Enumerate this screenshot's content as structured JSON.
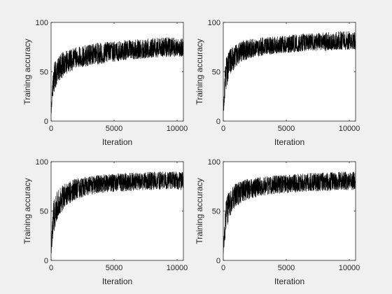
{
  "figure": {
    "background": "#f0f0f0",
    "axes_background": "#ffffff",
    "line_color": "#000000"
  },
  "chart_data": [
    {
      "type": "line",
      "position": "top-left",
      "xlabel": "Iteration",
      "ylabel": "Training accuracy",
      "xlim": [
        0,
        10500
      ],
      "ylim": [
        0,
        100
      ],
      "xticks": [
        0,
        5000,
        10000
      ],
      "yticks": [
        0,
        50,
        100
      ],
      "grid": false,
      "series": [
        {
          "color": "#000000",
          "x": [
            0,
            200,
            500,
            1000,
            1500,
            2000,
            3000,
            4000,
            5000,
            6000,
            7000,
            8000,
            9000,
            10000,
            10500
          ],
          "mean": [
            8,
            44,
            52,
            58,
            61,
            63,
            66,
            68,
            69,
            70,
            71,
            72,
            73,
            73,
            74
          ],
          "lower": [
            5,
            28,
            38,
            45,
            50,
            53,
            56,
            58,
            60,
            62,
            63,
            64,
            65,
            65,
            64
          ],
          "upper": [
            12,
            58,
            65,
            71,
            73,
            75,
            78,
            80,
            81,
            82,
            83,
            84,
            85,
            85,
            84
          ]
        }
      ]
    },
    {
      "type": "line",
      "position": "top-right",
      "xlabel": "Iteration",
      "ylabel": "Training accuracy",
      "xlim": [
        0,
        10500
      ],
      "ylim": [
        0,
        100
      ],
      "xticks": [
        0,
        5000,
        10000
      ],
      "yticks": [
        0,
        50,
        100
      ],
      "grid": false,
      "series": [
        {
          "color": "#000000",
          "x": [
            0,
            200,
            500,
            1000,
            1500,
            2000,
            3000,
            4000,
            5000,
            6000,
            7000,
            8000,
            9000,
            10000,
            10500
          ],
          "mean": [
            10,
            50,
            60,
            67,
            70,
            72,
            74,
            76,
            77,
            78,
            79,
            79,
            80,
            80,
            80
          ],
          "lower": [
            5,
            30,
            45,
            55,
            60,
            63,
            66,
            68,
            69,
            70,
            71,
            71,
            72,
            72,
            72
          ],
          "upper": [
            20,
            65,
            73,
            78,
            81,
            83,
            85,
            86,
            87,
            88,
            89,
            90,
            91,
            91,
            90
          ]
        }
      ]
    },
    {
      "type": "line",
      "position": "bottom-left",
      "xlabel": "Iteration",
      "ylabel": "Training accuracy",
      "xlim": [
        0,
        10500
      ],
      "ylim": [
        0,
        100
      ],
      "xticks": [
        0,
        5000,
        10000
      ],
      "yticks": [
        0,
        50,
        100
      ],
      "grid": false,
      "series": [
        {
          "color": "#000000",
          "x": [
            0,
            200,
            500,
            1000,
            1500,
            2000,
            3000,
            4000,
            5000,
            6000,
            7000,
            8000,
            9000,
            10000,
            10500
          ],
          "mean": [
            10,
            45,
            57,
            65,
            69,
            72,
            75,
            77,
            78,
            79,
            80,
            80,
            81,
            81,
            81
          ],
          "lower": [
            5,
            25,
            42,
            52,
            58,
            62,
            66,
            68,
            69,
            70,
            71,
            71,
            72,
            72,
            70
          ],
          "upper": [
            18,
            60,
            71,
            77,
            81,
            83,
            85,
            87,
            88,
            89,
            89,
            90,
            90,
            90,
            90
          ]
        }
      ]
    },
    {
      "type": "line",
      "position": "bottom-right",
      "xlabel": "Iteration",
      "ylabel": "Training accuracy",
      "xlim": [
        0,
        10500
      ],
      "ylim": [
        0,
        100
      ],
      "xticks": [
        0,
        5000,
        10000
      ],
      "yticks": [
        0,
        50,
        100
      ],
      "grid": false,
      "series": [
        {
          "color": "#000000",
          "x": [
            0,
            200,
            500,
            1000,
            1500,
            2000,
            3000,
            4000,
            5000,
            6000,
            7000,
            8000,
            9000,
            10000,
            10500
          ],
          "mean": [
            10,
            47,
            58,
            66,
            70,
            72,
            75,
            76,
            77,
            78,
            79,
            79,
            80,
            80,
            80
          ],
          "lower": [
            5,
            28,
            44,
            54,
            59,
            62,
            65,
            67,
            68,
            69,
            70,
            70,
            71,
            71,
            71
          ],
          "upper": [
            18,
            62,
            72,
            78,
            81,
            83,
            85,
            86,
            87,
            88,
            89,
            89,
            90,
            90,
            90
          ]
        }
      ]
    }
  ]
}
